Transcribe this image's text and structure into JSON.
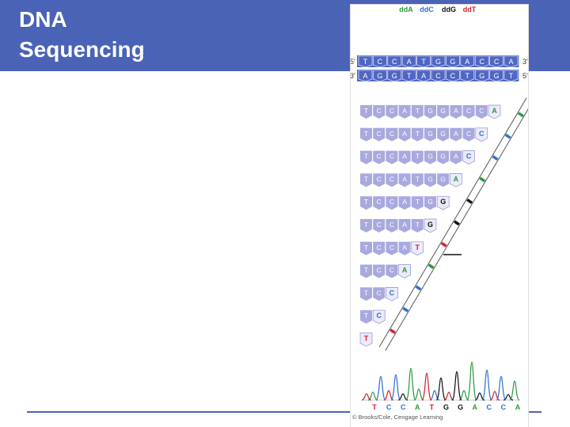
{
  "slide": {
    "title_lines": [
      "DNA",
      "Sequencing"
    ],
    "accent_color": "#4a63b7"
  },
  "figure": {
    "legend": [
      {
        "label": "ddA",
        "color": "#2a9a3c"
      },
      {
        "label": "ddC",
        "color": "#2f6fd0"
      },
      {
        "label": "ddG",
        "color": "#111111"
      },
      {
        "label": "ddT",
        "color": "#d61f2a"
      }
    ],
    "top_strand": {
      "left_end": "5'",
      "right_end": "3'",
      "bases": [
        "T",
        "C",
        "C",
        "A",
        "T",
        "G",
        "G",
        "A",
        "C",
        "C",
        "A"
      ]
    },
    "bottom_strand": {
      "left_end": "3'",
      "right_end": "5'",
      "bases": [
        "A",
        "G",
        "G",
        "T",
        "A",
        "C",
        "C",
        "T",
        "G",
        "G",
        "T"
      ]
    },
    "fragments": [
      [
        "T",
        "C",
        "C",
        "A",
        "T",
        "G",
        "G",
        "A",
        "C",
        "C",
        "A"
      ],
      [
        "T",
        "C",
        "C",
        "A",
        "T",
        "G",
        "G",
        "A",
        "C",
        "C"
      ],
      [
        "T",
        "C",
        "C",
        "A",
        "T",
        "G",
        "G",
        "A",
        "C"
      ],
      [
        "T",
        "C",
        "C",
        "A",
        "T",
        "G",
        "G",
        "A"
      ],
      [
        "T",
        "C",
        "C",
        "A",
        "T",
        "G",
        "G"
      ],
      [
        "T",
        "C",
        "C",
        "A",
        "T",
        "G"
      ],
      [
        "T",
        "C",
        "C",
        "A",
        "T"
      ],
      [
        "T",
        "C",
        "C",
        "A"
      ],
      [
        "T",
        "C",
        "C"
      ],
      [
        "T",
        "C"
      ],
      [
        "T"
      ]
    ],
    "read_sequence": [
      "T",
      "C",
      "C",
      "A",
      "T",
      "G",
      "G",
      "A",
      "C",
      "C",
      "A"
    ],
    "credit": "© Brooks/Cole, Cengage Learning",
    "colors": {
      "A": "#2a9a3c",
      "C": "#2f6fd0",
      "G": "#111111",
      "T": "#d61f2a",
      "strand_fill": "#4f66c4",
      "fragment_fill": "#a9a9df",
      "terminator_fill": "#ebebfb"
    }
  }
}
